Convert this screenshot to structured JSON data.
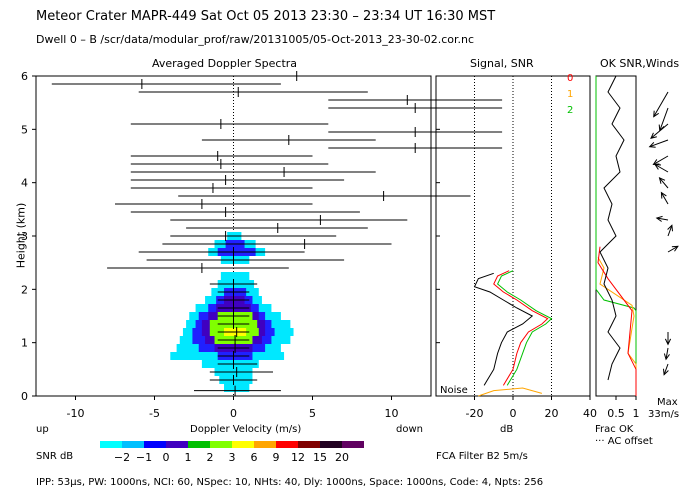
{
  "header": {
    "title": "Meteor Crater   MAPR-449   Sat Oct 05 2013 23:30 – 23:34 UT 16:30 MST",
    "dwell": "Dwell   0 –   B    /scr/data/modular_prof/raw/20131005/05-Oct-2013_23-30-02.cor.nc"
  },
  "panels": {
    "spectra_title": "Averaged Doppler Spectra",
    "snr_title": "Signal, SNR",
    "winds_title": "OK SNR,Winds",
    "noise_label": "Noise",
    "ylabel": "Height (km)",
    "up_label": "up",
    "down_label": "down",
    "frac_ok": "Frac OK",
    "ac_offset": "··· AC offset",
    "max_label": "Max",
    "max_value": "33m/s",
    "fca_filter": "FCA Filter B2  5m/s",
    "footer": "IPP: 53μs,  PW: 1000ns,  NCI: 60,  NSpec: 10, NHts: 40,  Dly: 1000ns,  Space: 1000ns,  Code: 4,  Npts: 256",
    "legend_ok": [
      "0",
      "1",
      "2"
    ]
  },
  "colors": {
    "ok0": "#ff0000",
    "ok1": "#ffa500",
    "ok2": "#00c000",
    "snr_black": "#000000",
    "snr_red": "#ff0000",
    "snr_green": "#00c000",
    "noise": "#ffa500"
  },
  "colorbar": {
    "label": "SNR dB",
    "ticks": [
      "−2",
      "−1",
      "0",
      "1",
      "2",
      "3",
      "6",
      "9",
      "12",
      "15",
      "20"
    ],
    "colors": [
      "#00ffff",
      "#00c0ff",
      "#0000ff",
      "#4000c0",
      "#00c000",
      "#80ff00",
      "#ffff00",
      "#ffa500",
      "#ff0000",
      "#800000",
      "#200020",
      "#600060"
    ]
  },
  "chart_data": [
    {
      "type": "heatmap",
      "title": "Averaged Doppler Spectra",
      "xlabel": "Doppler Velocity (m/s)",
      "ylabel": "Height (km)",
      "xlim": [
        -12.5,
        12.5
      ],
      "ylim": [
        0,
        6
      ],
      "xticks": [
        -10,
        -5,
        0,
        5,
        10
      ],
      "yticks": [
        0,
        1,
        2,
        3,
        4,
        5,
        6
      ],
      "spectral_blobs": [
        {
          "h": 0.15,
          "lo": -0.6,
          "hi": 1.0,
          "level": 0
        },
        {
          "h": 0.3,
          "lo": -0.9,
          "hi": 1.2,
          "level": 0
        },
        {
          "h": 0.45,
          "lo": -1.2,
          "hi": 1.2,
          "level": 0
        },
        {
          "h": 0.6,
          "lo": -2.0,
          "hi": 1.6,
          "level": 0
        },
        {
          "h": 0.75,
          "lo": -4.0,
          "hi": 3.2,
          "level": 0
        },
        {
          "h": 0.9,
          "lo": -3.6,
          "hi": 3.0,
          "level": 0
        },
        {
          "h": 1.05,
          "lo": -3.4,
          "hi": 3.6,
          "level": 0
        },
        {
          "h": 1.2,
          "lo": -3.2,
          "hi": 3.8,
          "level": 0
        },
        {
          "h": 1.35,
          "lo": -3.0,
          "hi": 3.6,
          "level": 0
        },
        {
          "h": 1.5,
          "lo": -2.8,
          "hi": 3.0,
          "level": 0
        },
        {
          "h": 1.65,
          "lo": -2.4,
          "hi": 2.4,
          "level": 0
        },
        {
          "h": 1.8,
          "lo": -1.8,
          "hi": 1.8,
          "level": 0
        },
        {
          "h": 1.95,
          "lo": -1.4,
          "hi": 1.6,
          "level": 0
        },
        {
          "h": 2.1,
          "lo": -1.0,
          "hi": 1.3,
          "level": 0
        },
        {
          "h": 2.25,
          "lo": -0.8,
          "hi": 1.0,
          "level": 0
        },
        {
          "h": 2.55,
          "lo": -0.8,
          "hi": 1.0,
          "level": 0
        },
        {
          "h": 2.7,
          "lo": -1.6,
          "hi": 2.0,
          "level": 0
        },
        {
          "h": 2.85,
          "lo": -1.2,
          "hi": 1.4,
          "level": 0
        },
        {
          "h": 3.0,
          "lo": -0.4,
          "hi": 0.5,
          "level": 0
        },
        {
          "h": 0.75,
          "lo": -1.0,
          "hi": 1.2,
          "level": 1
        },
        {
          "h": 0.9,
          "lo": -2.2,
          "hi": 2.0,
          "level": 1
        },
        {
          "h": 1.05,
          "lo": -2.6,
          "hi": 2.4,
          "level": 1
        },
        {
          "h": 1.2,
          "lo": -2.6,
          "hi": 2.6,
          "level": 1
        },
        {
          "h": 1.35,
          "lo": -2.4,
          "hi": 2.4,
          "level": 1
        },
        {
          "h": 1.5,
          "lo": -2.2,
          "hi": 2.0,
          "level": 1
        },
        {
          "h": 1.65,
          "lo": -1.6,
          "hi": 1.6,
          "level": 1
        },
        {
          "h": 1.8,
          "lo": -1.1,
          "hi": 1.2,
          "level": 1
        },
        {
          "h": 1.95,
          "lo": -0.6,
          "hi": 0.8,
          "level": 1
        },
        {
          "h": 2.7,
          "lo": -1.0,
          "hi": 1.4,
          "level": 1
        },
        {
          "h": 2.85,
          "lo": -0.5,
          "hi": 0.7,
          "level": 1
        },
        {
          "h": 0.9,
          "lo": -1.2,
          "hi": 1.2,
          "level": 2
        },
        {
          "h": 1.05,
          "lo": -1.8,
          "hi": 1.8,
          "level": 2
        },
        {
          "h": 1.2,
          "lo": -2.0,
          "hi": 2.0,
          "level": 2
        },
        {
          "h": 1.35,
          "lo": -2.0,
          "hi": 2.0,
          "level": 2
        },
        {
          "h": 1.5,
          "lo": -1.6,
          "hi": 1.6,
          "level": 2
        },
        {
          "h": 1.65,
          "lo": -1.1,
          "hi": 1.1,
          "level": 2
        },
        {
          "h": 1.8,
          "lo": -0.6,
          "hi": 0.7,
          "level": 2
        },
        {
          "h": 1.05,
          "lo": -1.2,
          "hi": 1.2,
          "level": 3
        },
        {
          "h": 1.2,
          "lo": -1.5,
          "hi": 1.6,
          "level": 3
        },
        {
          "h": 1.35,
          "lo": -1.5,
          "hi": 1.5,
          "level": 3
        },
        {
          "h": 1.5,
          "lo": -1.0,
          "hi": 1.2,
          "level": 3
        },
        {
          "h": 1.2,
          "lo": -0.6,
          "hi": 0.8,
          "level": 4
        }
      ],
      "moments": [
        {
          "h": 0.1,
          "lo": -2.5,
          "hi": 3.0,
          "mean": 0.1
        },
        {
          "h": 0.3,
          "lo": -1.5,
          "hi": 1.5,
          "mean": 0.0
        },
        {
          "h": 0.45,
          "lo": -1.5,
          "hi": 2.5,
          "mean": 0.2
        },
        {
          "h": 0.6,
          "lo": -1.0,
          "hi": 1.5,
          "mean": 0.0
        },
        {
          "h": 0.75,
          "lo": -1.0,
          "hi": 1.0,
          "mean": 0.0
        },
        {
          "h": 0.9,
          "lo": -1.0,
          "hi": 1.0,
          "mean": 0.1
        },
        {
          "h": 1.05,
          "lo": -1.0,
          "hi": 1.0,
          "mean": 0.1
        },
        {
          "h": 1.2,
          "lo": -1.0,
          "hi": 1.0,
          "mean": 0.2
        },
        {
          "h": 1.35,
          "lo": -1.0,
          "hi": 1.0,
          "mean": 0.0
        },
        {
          "h": 1.5,
          "lo": -1.0,
          "hi": 1.0,
          "mean": 0.0
        },
        {
          "h": 1.65,
          "lo": -1.0,
          "hi": 1.0,
          "mean": 0.0
        },
        {
          "h": 1.8,
          "lo": -1.0,
          "hi": 1.0,
          "mean": 0.0
        },
        {
          "h": 1.95,
          "lo": -1.0,
          "hi": 1.0,
          "mean": 0.0
        },
        {
          "h": 2.1,
          "lo": -1.5,
          "hi": 1.5,
          "mean": 0.0
        },
        {
          "h": 2.4,
          "lo": -8.0,
          "hi": 3.5,
          "mean": -2.0
        },
        {
          "h": 2.55,
          "lo": -5.5,
          "hi": 7.0,
          "mean": 0.0
        },
        {
          "h": 2.7,
          "lo": -6.0,
          "hi": 4.5,
          "mean": 0.0
        },
        {
          "h": 2.85,
          "lo": -4.5,
          "hi": 10.0,
          "mean": 4.5
        },
        {
          "h": 3.0,
          "lo": -4.0,
          "hi": 6.5,
          "mean": -0.5
        },
        {
          "h": 3.15,
          "lo": -3.0,
          "hi": 8.5,
          "mean": 2.8
        },
        {
          "h": 3.3,
          "lo": -4.0,
          "hi": 11.0,
          "mean": 5.5
        },
        {
          "h": 3.45,
          "lo": -6.5,
          "hi": 8.0,
          "mean": -0.5
        },
        {
          "h": 3.6,
          "lo": -7.5,
          "hi": 5.0,
          "mean": -2.0
        },
        {
          "h": 3.75,
          "lo": -3.5,
          "hi": 15.0,
          "mean": 9.5
        },
        {
          "h": 3.9,
          "lo": -6.5,
          "hi": 5.0,
          "mean": -1.3
        },
        {
          "h": 4.05,
          "lo": -6.5,
          "hi": 7.0,
          "mean": -0.5
        },
        {
          "h": 4.2,
          "lo": -6.5,
          "hi": 9.0,
          "mean": 3.2
        },
        {
          "h": 4.35,
          "lo": -6.5,
          "hi": 6.0,
          "mean": -0.8
        },
        {
          "h": 4.5,
          "lo": -6.5,
          "hi": 5.0,
          "mean": -1.0
        },
        {
          "h": 4.65,
          "lo": 6.0,
          "hi": 17.0,
          "mean": 11.5
        },
        {
          "h": 4.8,
          "lo": -2.0,
          "hi": 9.0,
          "mean": 3.5
        },
        {
          "h": 4.95,
          "lo": 6.0,
          "hi": 17.0,
          "mean": 11.5
        },
        {
          "h": 5.1,
          "lo": -6.5,
          "hi": 6.0,
          "mean": -0.8
        },
        {
          "h": 5.4,
          "lo": 6.0,
          "hi": 17.0,
          "mean": 11.5
        },
        {
          "h": 5.55,
          "lo": 6.0,
          "hi": 17.0,
          "mean": 11.0
        },
        {
          "h": 5.7,
          "lo": -6.0,
          "hi": 8.5,
          "mean": 0.3
        },
        {
          "h": 5.85,
          "lo": -11.5,
          "hi": 3.0,
          "mean": -5.8
        },
        {
          "h": 6.0,
          "lo": -5.5,
          "hi": 9.5,
          "mean": 4.0
        }
      ]
    },
    {
      "type": "line",
      "title": "Signal, SNR",
      "xlabel": "dB",
      "xlim": [
        -40,
        40
      ],
      "ylim": [
        0,
        6
      ],
      "xticks": [
        -20,
        0,
        20,
        40
      ],
      "series": [
        {
          "name": "Signal",
          "color": "#000000",
          "points": [
            [
              -15,
              0.2
            ],
            [
              -10,
              0.5
            ],
            [
              -8,
              0.8
            ],
            [
              -6,
              1.0
            ],
            [
              -3,
              1.2
            ],
            [
              5,
              1.35
            ],
            [
              10,
              1.5
            ],
            [
              2,
              1.65
            ],
            [
              -5,
              1.8
            ],
            [
              -12,
              1.95
            ],
            [
              -20,
              2.05
            ],
            [
              -18,
              2.2
            ],
            [
              -10,
              2.3
            ]
          ]
        },
        {
          "name": "SNR",
          "color": "#ff0000",
          "points": [
            [
              -5,
              0.2
            ],
            [
              0,
              0.5
            ],
            [
              2,
              0.8
            ],
            [
              4,
              1.0
            ],
            [
              8,
              1.2
            ],
            [
              15,
              1.35
            ],
            [
              18,
              1.45
            ],
            [
              10,
              1.6
            ],
            [
              2,
              1.8
            ],
            [
              -5,
              1.95
            ],
            [
              -10,
              2.1
            ],
            [
              -8,
              2.25
            ],
            [
              -2,
              2.35
            ]
          ]
        },
        {
          "name": "SNR OK",
          "color": "#00c000",
          "points": [
            [
              -3,
              0.2
            ],
            [
              2,
              0.5
            ],
            [
              5,
              0.8
            ],
            [
              7,
              1.0
            ],
            [
              10,
              1.2
            ],
            [
              17,
              1.35
            ],
            [
              20,
              1.45
            ],
            [
              12,
              1.6
            ],
            [
              4,
              1.8
            ],
            [
              -3,
              1.95
            ],
            [
              -8,
              2.1
            ],
            [
              -6,
              2.25
            ],
            [
              0,
              2.35
            ]
          ]
        },
        {
          "name": "Noise",
          "color": "#ffa500",
          "points": [
            [
              -18,
              0.0
            ],
            [
              -10,
              0.1
            ],
            [
              5,
              0.15
            ],
            [
              15,
              0.05
            ]
          ]
        }
      ],
      "guide_lines_db": [
        -20,
        0,
        20
      ]
    },
    {
      "type": "line",
      "title": "OK SNR,Winds",
      "xlabel": "Frac OK",
      "xlim": [
        0,
        1
      ],
      "ylim": [
        0,
        6
      ],
      "xticks": [
        0.5,
        1
      ],
      "legend": [
        "0",
        "1",
        "2"
      ],
      "series": [
        {
          "name": "Frac OK 2",
          "color": "#00c000",
          "points": [
            [
              0,
              6
            ],
            [
              0,
              2.0
            ],
            [
              0.2,
              1.8
            ],
            [
              0.95,
              1.65
            ],
            [
              1,
              1.6
            ],
            [
              1,
              0
            ]
          ]
        },
        {
          "name": "Frac OK 1",
          "color": "#ffa500",
          "points": [
            [
              0.05,
              2.6
            ],
            [
              0.2,
              2.4
            ],
            [
              0.1,
              2.1
            ],
            [
              0.9,
              1.7
            ],
            [
              0.95,
              1.5
            ],
            [
              0.8,
              0.8
            ],
            [
              1,
              0.6
            ],
            [
              1,
              0
            ]
          ]
        },
        {
          "name": "Frac OK 0",
          "color": "#ff0000",
          "points": [
            [
              0.1,
              2.8
            ],
            [
              0.05,
              2.5
            ],
            [
              0.3,
              2.2
            ],
            [
              0.9,
              1.6
            ],
            [
              0.8,
              0.8
            ],
            [
              1,
              0.5
            ],
            [
              1,
              0
            ]
          ]
        },
        {
          "name": "AC offset",
          "color": "#000000",
          "points": [
            [
              0.5,
              6
            ],
            [
              0.3,
              5.7
            ],
            [
              0.6,
              5.4
            ],
            [
              0.4,
              5.1
            ],
            [
              0.7,
              4.8
            ],
            [
              0.5,
              4.5
            ],
            [
              0.6,
              4.2
            ],
            [
              0.2,
              3.9
            ],
            [
              0.4,
              3.6
            ],
            [
              0.3,
              3.3
            ],
            [
              0.5,
              3.0
            ],
            [
              0.1,
              2.7
            ],
            [
              0.3,
              2.4
            ],
            [
              0.2,
              2.1
            ],
            [
              0.4,
              1.8
            ],
            [
              0.5,
              1.5
            ],
            [
              0.3,
              1.2
            ],
            [
              0.6,
              0.9
            ],
            [
              0.4,
              0.6
            ],
            [
              0.3,
              0.3
            ]
          ]
        }
      ],
      "wind_barbs": [
        {
          "h": 5.7,
          "dir": 210,
          "speed": 25
        },
        {
          "h": 5.4,
          "dir": 200,
          "speed": 20
        },
        {
          "h": 5.1,
          "dir": 230,
          "speed": 18
        },
        {
          "h": 4.8,
          "dir": 250,
          "speed": 15
        },
        {
          "h": 4.5,
          "dir": 240,
          "speed": 12
        },
        {
          "h": 4.2,
          "dir": 300,
          "speed": 10
        },
        {
          "h": 3.9,
          "dir": 320,
          "speed": 8
        },
        {
          "h": 3.6,
          "dir": 330,
          "speed": 8
        },
        {
          "h": 3.3,
          "dir": 280,
          "speed": 6
        },
        {
          "h": 3.0,
          "dir": 20,
          "speed": 6
        },
        {
          "h": 2.7,
          "dir": 60,
          "speed": 6
        },
        {
          "h": 1.2,
          "dir": 180,
          "speed": 7
        },
        {
          "h": 0.9,
          "dir": 190,
          "speed": 6
        },
        {
          "h": 0.6,
          "dir": 200,
          "speed": 6
        }
      ]
    }
  ]
}
